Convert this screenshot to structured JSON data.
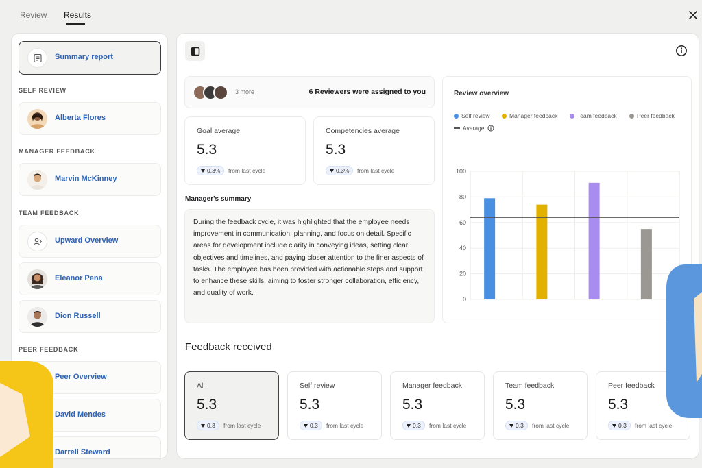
{
  "tabs": [
    {
      "label": "Review"
    },
    {
      "label": "Results"
    }
  ],
  "sidebar": {
    "summary_label": "Summary report",
    "sections": {
      "self_review": "SELF REVIEW",
      "manager_feedback": "MANAGER FEEDBACK",
      "team_feedback": "TEAM FEEDBACK",
      "peer_feedback": "PEER FEEDBACK"
    },
    "items": {
      "alberta": "Alberta Flores",
      "marvin": "Marvin McKinney",
      "upward": "Upward Overview",
      "eleanor": "Eleanor Pena",
      "dion": "Dion Russell",
      "peer_overview": "Peer Overview",
      "david": "David Mendes",
      "darrell": "Darrell Steward"
    }
  },
  "reviewers": {
    "more": "3 more",
    "assigned": "6 Reviewers  were assigned to you"
  },
  "stats": {
    "goal": {
      "label": "Goal average",
      "value": "5.3",
      "delta": "0.3%",
      "delta_note": "from last cycle"
    },
    "competencies": {
      "label": "Competencies average",
      "value": "5.3",
      "delta": "0.3%",
      "delta_note": "from last cycle"
    }
  },
  "manager_summary": {
    "title": "Manager's summary",
    "text": "During the feedback cycle, it was highlighted that the employee needs improvement in communication, planning, and focus on detail. Specific areas for development include clarity in conveying ideas, setting clear objectives and timelines, and paying closer attention to the finer aspects of tasks. The employee has been provided with actionable steps and support to enhance these skills, aiming to foster stronger collaboration, efficiency, and quality of work."
  },
  "chart_data": {
    "type": "bar",
    "title": "Review overview",
    "categories": [
      "Self review",
      "Manager feedback",
      "Team feedback",
      "Peer feedback"
    ],
    "values": [
      79,
      74,
      91,
      55
    ],
    "colors": [
      "#4a90e2",
      "#e2b100",
      "#a98cf0",
      "#9b9893"
    ],
    "average": 64,
    "average_label": "Average",
    "ylim": [
      0,
      100
    ],
    "yticks": [
      0,
      20,
      40,
      60,
      80,
      100
    ],
    "legend_placement": "top-left",
    "grid": true
  },
  "feedback": {
    "title": "Feedback received",
    "cards": [
      {
        "label": "All",
        "value": "5.3",
        "delta": "0.3",
        "note": "from last cycle"
      },
      {
        "label": "Self review",
        "value": "5.3",
        "delta": "0.3",
        "note": "from last cycle"
      },
      {
        "label": "Manager feedback",
        "value": "5.3",
        "delta": "0.3",
        "note": "from last cycle"
      },
      {
        "label": "Team feedback",
        "value": "5.3",
        "delta": "0.3",
        "note": "from last cycle"
      },
      {
        "label": "Peer feedback",
        "value": "5.3",
        "delta": "0.3",
        "note": "from last cycle"
      }
    ]
  },
  "colors": {
    "accent": "#2e63b5",
    "delta_pill_bg": "#ecf1fb",
    "deco_yellow": "#f5c518",
    "deco_blue": "#5a97dc"
  }
}
